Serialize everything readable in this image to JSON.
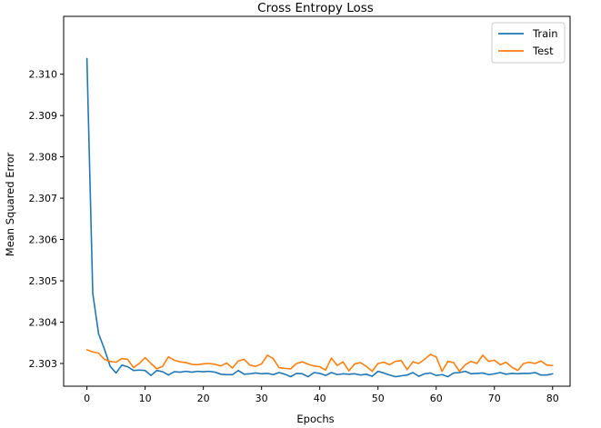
{
  "chart_data": {
    "type": "line",
    "title": "Cross Entropy Loss",
    "xlabel": "Epochs",
    "ylabel": "Mean Squared Error",
    "xlim": [
      -4,
      83
    ],
    "ylim": [
      2.30245,
      2.3114
    ],
    "xticks": [
      0,
      10,
      20,
      30,
      40,
      50,
      60,
      70,
      80
    ],
    "yticks": [
      2.303,
      2.304,
      2.305,
      2.306,
      2.307,
      2.308,
      2.309,
      2.31
    ],
    "ytick_labels": [
      "2.303",
      "2.304",
      "2.305",
      "2.306",
      "2.307",
      "2.308",
      "2.309",
      "2.310"
    ],
    "grid": false,
    "legend_position": "top-right",
    "series": [
      {
        "name": "Train",
        "color": "#1f77b4",
        "values": [
          2.31038,
          2.3047,
          2.30372,
          2.30335,
          2.30293,
          2.30277,
          2.30296,
          2.30292,
          2.30283,
          2.30284,
          2.30283,
          2.30271,
          2.30283,
          2.3028,
          2.30272,
          2.3028,
          2.30279,
          2.30281,
          2.30279,
          2.30281,
          2.3028,
          2.30281,
          2.30279,
          2.30274,
          2.30273,
          2.30273,
          2.30283,
          2.30274,
          2.30275,
          2.30277,
          2.30275,
          2.30276,
          2.30273,
          2.30278,
          2.30274,
          2.30268,
          2.30276,
          2.30275,
          2.30268,
          2.30278,
          2.30276,
          2.30271,
          2.30278,
          2.30273,
          2.30275,
          2.30274,
          2.30275,
          2.30272,
          2.30274,
          2.30269,
          2.30281,
          2.30277,
          2.30272,
          2.30268,
          2.3027,
          2.30272,
          2.30278,
          2.30269,
          2.30275,
          2.30277,
          2.30271,
          2.30273,
          2.30268,
          2.30277,
          2.30278,
          2.30281,
          2.30275,
          2.30276,
          2.30277,
          2.30273,
          2.30275,
          2.30278,
          2.30274,
          2.30276,
          2.30275,
          2.30276,
          2.30276,
          2.30278,
          2.30272,
          2.30272,
          2.30275
        ]
      },
      {
        "name": "Test",
        "color": "#ff7f0e",
        "values": [
          2.30333,
          2.30328,
          2.30325,
          2.3031,
          2.30305,
          2.30303,
          2.30312,
          2.3031,
          2.3029,
          2.303,
          2.30314,
          2.303,
          2.30287,
          2.30293,
          2.30316,
          2.30308,
          2.30304,
          2.30302,
          2.30298,
          2.30297,
          2.30299,
          2.303,
          2.30298,
          2.30294,
          2.30301,
          2.30289,
          2.30306,
          2.3031,
          2.30296,
          2.30293,
          2.30299,
          2.3032,
          2.30312,
          2.3029,
          2.30288,
          2.30287,
          2.303,
          2.30304,
          2.30298,
          2.30294,
          2.30292,
          2.30284,
          2.30313,
          2.30295,
          2.30304,
          2.30282,
          2.30299,
          2.30302,
          2.30293,
          2.30281,
          2.303,
          2.30303,
          2.30297,
          2.30305,
          2.30307,
          2.30285,
          2.30304,
          2.303,
          2.3031,
          2.30322,
          2.30316,
          2.30281,
          2.30305,
          2.30302,
          2.30281,
          2.30297,
          2.30305,
          2.303,
          2.3032,
          2.30305,
          2.30308,
          2.30297,
          2.30303,
          2.30291,
          2.30283,
          2.303,
          2.30303,
          2.303,
          2.30306,
          2.30296,
          2.30295
        ]
      }
    ]
  }
}
